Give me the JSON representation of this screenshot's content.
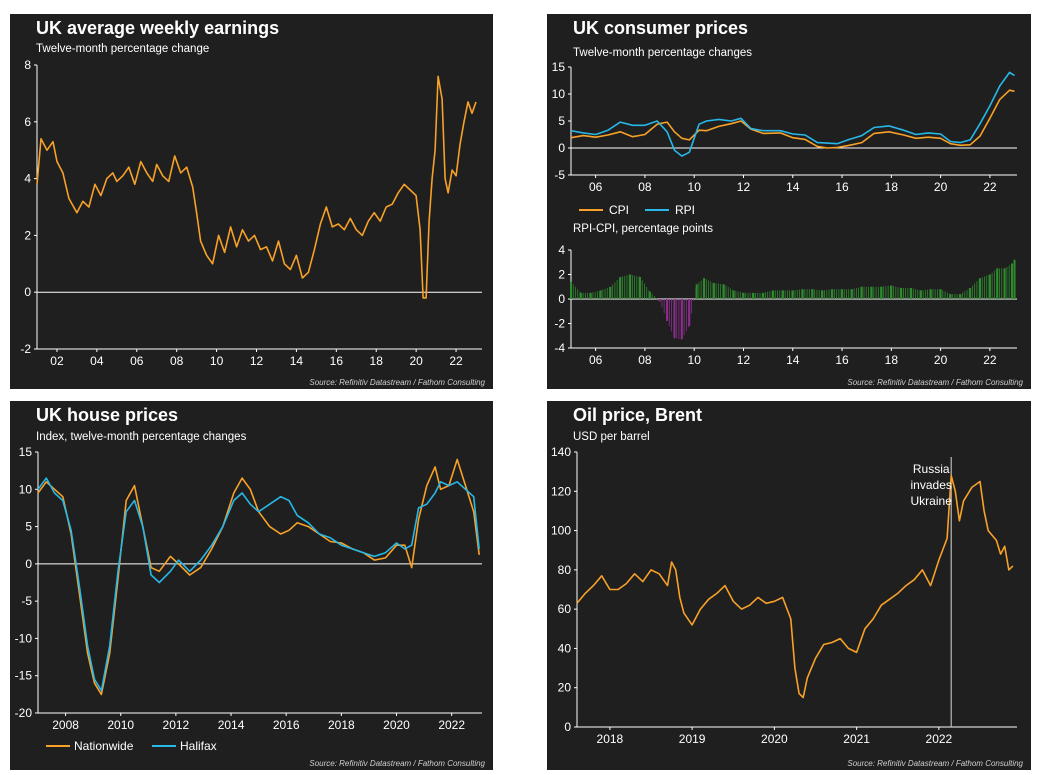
{
  "source": "Source: Refinitiv Datastream / Fathom Consulting",
  "colors": {
    "orange": "#f7a128",
    "blue": "#27b8e8",
    "green": "#2e8b2e",
    "purple": "#8a2e8a",
    "panel": "#1f1f1f",
    "axis": "#ffffff"
  },
  "chart_data": [
    {
      "type": "line",
      "title": "UK average weekly earnings",
      "subtitle": "Twelve-month percentage change",
      "ylim": [
        -2,
        8
      ],
      "yticks": [
        "-2",
        "0",
        "2",
        "4",
        "6",
        "8"
      ],
      "xlim": [
        2001,
        2023.3
      ],
      "xtick_values": [
        2002,
        2004,
        2006,
        2008,
        2010,
        2012,
        2014,
        2016,
        2018,
        2020,
        2022
      ],
      "xtick_labels": [
        "02",
        "04",
        "06",
        "08",
        "10",
        "12",
        "14",
        "16",
        "18",
        "20",
        "22"
      ],
      "series": [
        {
          "name": "Average weekly earnings",
          "color": "#f7a128",
          "x": [
            2001.0,
            2001.2,
            2001.5,
            2001.8,
            2002.0,
            2002.3,
            2002.6,
            2003.0,
            2003.3,
            2003.6,
            2003.9,
            2004.2,
            2004.5,
            2004.8,
            2005.0,
            2005.3,
            2005.6,
            2005.9,
            2006.2,
            2006.5,
            2006.8,
            2007.0,
            2007.3,
            2007.6,
            2007.9,
            2008.2,
            2008.5,
            2008.8,
            2009.0,
            2009.2,
            2009.5,
            2009.8,
            2010.1,
            2010.4,
            2010.7,
            2011.0,
            2011.3,
            2011.6,
            2011.9,
            2012.2,
            2012.5,
            2012.8,
            2013.1,
            2013.4,
            2013.7,
            2014.0,
            2014.3,
            2014.6,
            2014.9,
            2015.2,
            2015.5,
            2015.8,
            2016.1,
            2016.4,
            2016.7,
            2017.0,
            2017.3,
            2017.6,
            2017.9,
            2018.2,
            2018.5,
            2018.8,
            2019.1,
            2019.4,
            2019.7,
            2020.0,
            2020.2,
            2020.35,
            2020.5,
            2020.65,
            2020.8,
            2020.95,
            2021.1,
            2021.3,
            2021.45,
            2021.6,
            2021.8,
            2022.0,
            2022.2,
            2022.4,
            2022.6,
            2022.8,
            2023.0
          ],
          "y": [
            3.8,
            5.4,
            5.0,
            5.3,
            4.6,
            4.2,
            3.3,
            2.8,
            3.2,
            3.0,
            3.8,
            3.4,
            4.0,
            4.2,
            3.9,
            4.1,
            4.4,
            3.8,
            4.6,
            4.2,
            3.9,
            4.5,
            4.1,
            3.9,
            4.8,
            4.2,
            4.4,
            3.7,
            2.8,
            1.8,
            1.3,
            1.0,
            2.0,
            1.4,
            2.3,
            1.6,
            2.2,
            1.8,
            2.0,
            1.5,
            1.6,
            1.1,
            1.8,
            1.0,
            0.8,
            1.3,
            0.5,
            0.7,
            1.5,
            2.4,
            3.0,
            2.3,
            2.4,
            2.2,
            2.6,
            2.2,
            2.0,
            2.5,
            2.8,
            2.5,
            3.0,
            3.1,
            3.5,
            3.8,
            3.6,
            3.4,
            2.2,
            -0.2,
            -0.2,
            2.5,
            4.0,
            5.0,
            7.6,
            6.8,
            4.0,
            3.5,
            4.3,
            4.1,
            5.2,
            6.0,
            6.7,
            6.3,
            6.7
          ]
        }
      ]
    },
    {
      "type": "line",
      "title": "UK consumer prices",
      "subtitle": "Twelve-month percentage changes",
      "ylim": [
        -5,
        15
      ],
      "yticks": [
        "-5",
        "0",
        "5",
        "10",
        "15"
      ],
      "xlim": [
        2005,
        2023.1
      ],
      "xtick_values": [
        2006,
        2008,
        2010,
        2012,
        2014,
        2016,
        2018,
        2020,
        2022
      ],
      "xtick_labels": [
        "06",
        "08",
        "10",
        "12",
        "14",
        "16",
        "18",
        "20",
        "22"
      ],
      "legend": [
        "CPI",
        "RPI"
      ],
      "series": [
        {
          "name": "CPI",
          "color": "#f7a128",
          "x": [
            2005.0,
            2005.5,
            2006.0,
            2006.5,
            2007.0,
            2007.5,
            2008.0,
            2008.5,
            2008.9,
            2009.2,
            2009.5,
            2009.8,
            2010.2,
            2010.5,
            2011.0,
            2011.5,
            2011.9,
            2012.3,
            2012.8,
            2013.5,
            2014.0,
            2014.5,
            2015.0,
            2015.4,
            2015.8,
            2016.3,
            2016.8,
            2017.3,
            2017.9,
            2018.5,
            2019.0,
            2019.5,
            2020.0,
            2020.4,
            2020.8,
            2021.2,
            2021.6,
            2022.0,
            2022.4,
            2022.8,
            2023.0
          ],
          "y": [
            1.9,
            2.3,
            2.0,
            2.4,
            3.0,
            2.1,
            2.5,
            4.4,
            4.8,
            3.0,
            1.8,
            1.5,
            3.3,
            3.2,
            4.0,
            4.5,
            5.0,
            3.5,
            2.7,
            2.8,
            1.9,
            1.6,
            0.3,
            0.0,
            0.1,
            0.5,
            1.0,
            2.7,
            3.0,
            2.4,
            1.8,
            2.0,
            1.8,
            0.8,
            0.5,
            0.6,
            2.2,
            5.5,
            9.0,
            10.7,
            10.5
          ]
        },
        {
          "name": "RPI",
          "color": "#27b8e8",
          "x": [
            2005.0,
            2005.5,
            2006.0,
            2006.5,
            2007.0,
            2007.5,
            2008.0,
            2008.5,
            2008.9,
            2009.2,
            2009.5,
            2009.8,
            2010.2,
            2010.5,
            2011.0,
            2011.5,
            2011.9,
            2012.3,
            2012.8,
            2013.5,
            2014.0,
            2014.5,
            2015.0,
            2015.4,
            2015.8,
            2016.3,
            2016.8,
            2017.3,
            2017.9,
            2018.5,
            2019.0,
            2019.5,
            2020.0,
            2020.4,
            2020.8,
            2021.2,
            2021.6,
            2022.0,
            2022.4,
            2022.8,
            2023.0
          ],
          "y": [
            3.2,
            2.8,
            2.5,
            3.3,
            4.8,
            4.2,
            4.2,
            5.0,
            3.0,
            -0.4,
            -1.5,
            -0.8,
            4.4,
            5.0,
            5.3,
            5.0,
            5.5,
            3.6,
            3.2,
            3.2,
            2.6,
            2.4,
            1.0,
            0.9,
            0.8,
            1.6,
            2.3,
            3.8,
            4.1,
            3.3,
            2.5,
            2.8,
            2.6,
            1.2,
            1.0,
            1.5,
            4.5,
            7.8,
            11.5,
            14.0,
            13.4
          ]
        }
      ]
    },
    {
      "type": "bar",
      "title": "",
      "subtitle": "RPI-CPI, percentage points",
      "ylim": [
        -4,
        4
      ],
      "yticks": [
        "-4",
        "-2",
        "0",
        "2",
        "4"
      ],
      "xlim": [
        2005,
        2023.1
      ],
      "xtick_values": [
        2006,
        2008,
        2010,
        2012,
        2014,
        2016,
        2018,
        2020,
        2022
      ],
      "xtick_labels": [
        "06",
        "08",
        "10",
        "12",
        "14",
        "16",
        "18",
        "20",
        "22"
      ],
      "positive_color": "#2e8b2e",
      "negative_color": "#8a2e8a",
      "x": [
        2005.0,
        2005.4,
        2005.8,
        2006.2,
        2006.6,
        2007.0,
        2007.4,
        2007.8,
        2008.2,
        2008.6,
        2008.9,
        2009.2,
        2009.5,
        2009.8,
        2010.1,
        2010.4,
        2010.8,
        2011.2,
        2011.6,
        2012.0,
        2012.4,
        2012.8,
        2013.2,
        2013.6,
        2014.0,
        2014.4,
        2014.8,
        2015.2,
        2015.6,
        2016.0,
        2016.4,
        2016.8,
        2017.2,
        2017.6,
        2018.0,
        2018.4,
        2018.8,
        2019.2,
        2019.6,
        2020.0,
        2020.4,
        2020.8,
        2021.2,
        2021.6,
        2022.0,
        2022.3,
        2022.6,
        2022.9,
        2023.0
      ],
      "values": [
        1.4,
        0.5,
        0.5,
        0.7,
        1.0,
        1.8,
        2.0,
        1.8,
        0.6,
        -0.2,
        -1.8,
        -3.2,
        -3.3,
        -2.2,
        1.2,
        1.7,
        1.3,
        1.2,
        0.7,
        0.5,
        0.5,
        0.5,
        0.7,
        0.7,
        0.7,
        0.8,
        0.8,
        0.7,
        0.8,
        0.8,
        0.8,
        1.0,
        1.0,
        1.0,
        1.1,
        0.9,
        0.9,
        0.7,
        0.8,
        0.8,
        0.4,
        0.4,
        0.9,
        1.7,
        2.0,
        2.5,
        2.5,
        2.9,
        3.2
      ]
    },
    {
      "type": "line",
      "title": "UK house prices",
      "subtitle": "Index, twelve-month percentage changes",
      "ylim": [
        -20,
        15
      ],
      "yticks": [
        "-20",
        "-15",
        "-10",
        "-5",
        "0",
        "5",
        "10",
        "15"
      ],
      "xlim": [
        2007,
        2023.1
      ],
      "xtick_values": [
        2008,
        2010,
        2012,
        2014,
        2016,
        2018,
        2020,
        2022
      ],
      "xtick_labels": [
        "2008",
        "2010",
        "2012",
        "2014",
        "2016",
        "2018",
        "2020",
        "2022"
      ],
      "legend": [
        "Nationwide",
        "Halifax"
      ],
      "series": [
        {
          "name": "Nationwide",
          "color": "#f7a128",
          "x": [
            2007.0,
            2007.3,
            2007.6,
            2007.9,
            2008.2,
            2008.5,
            2008.8,
            2009.05,
            2009.3,
            2009.6,
            2009.9,
            2010.2,
            2010.5,
            2010.8,
            2011.1,
            2011.4,
            2011.8,
            2012.1,
            2012.5,
            2012.9,
            2013.3,
            2013.7,
            2014.1,
            2014.4,
            2014.7,
            2015.0,
            2015.4,
            2015.8,
            2016.1,
            2016.4,
            2016.8,
            2017.2,
            2017.6,
            2018.0,
            2018.4,
            2018.8,
            2019.2,
            2019.6,
            2020.0,
            2020.3,
            2020.55,
            2020.8,
            2021.1,
            2021.4,
            2021.6,
            2021.9,
            2022.2,
            2022.5,
            2022.8,
            2023.0
          ],
          "y": [
            9.5,
            11.0,
            10.0,
            9.0,
            4.0,
            -4.0,
            -12.0,
            -16.0,
            -17.5,
            -12.0,
            -2.0,
            8.5,
            10.5,
            5.0,
            -0.5,
            -1.0,
            1.0,
            0.0,
            -1.5,
            -0.5,
            2.0,
            5.0,
            9.5,
            11.5,
            10.0,
            7.0,
            5.0,
            4.0,
            4.5,
            5.5,
            5.0,
            4.0,
            3.0,
            2.8,
            2.0,
            1.5,
            0.5,
            0.8,
            2.5,
            2.5,
            -0.5,
            6.0,
            10.5,
            13.0,
            10.0,
            10.5,
            14.0,
            10.5,
            7.0,
            1.2
          ]
        },
        {
          "name": "Halifax",
          "color": "#27b8e8",
          "x": [
            2007.0,
            2007.3,
            2007.6,
            2007.9,
            2008.2,
            2008.5,
            2008.8,
            2009.05,
            2009.3,
            2009.6,
            2009.9,
            2010.2,
            2010.5,
            2010.8,
            2011.1,
            2011.4,
            2011.8,
            2012.1,
            2012.5,
            2012.9,
            2013.3,
            2013.7,
            2014.1,
            2014.4,
            2014.7,
            2015.0,
            2015.4,
            2015.8,
            2016.1,
            2016.4,
            2016.8,
            2017.2,
            2017.6,
            2018.0,
            2018.4,
            2018.8,
            2019.2,
            2019.6,
            2020.0,
            2020.3,
            2020.55,
            2020.8,
            2021.1,
            2021.4,
            2021.6,
            2021.9,
            2022.2,
            2022.5,
            2022.8,
            2023.0
          ],
          "y": [
            10.0,
            11.5,
            9.5,
            8.5,
            4.5,
            -3.0,
            -11.0,
            -15.5,
            -17.0,
            -11.0,
            -1.0,
            7.0,
            8.5,
            5.0,
            -1.5,
            -2.5,
            -1.0,
            0.5,
            -1.0,
            0.5,
            2.5,
            5.0,
            8.5,
            9.5,
            8.0,
            7.0,
            8.0,
            9.0,
            8.5,
            6.5,
            5.5,
            4.0,
            3.5,
            2.5,
            2.0,
            1.5,
            1.0,
            1.5,
            2.8,
            2.0,
            2.5,
            7.5,
            8.0,
            9.5,
            11.0,
            10.5,
            11.0,
            10.0,
            9.0,
            2.0
          ]
        }
      ]
    },
    {
      "type": "line",
      "title": "Oil price, Brent",
      "subtitle": "USD per barrel",
      "ylim": [
        0,
        140
      ],
      "yticks": [
        "0",
        "20",
        "40",
        "60",
        "80",
        "100",
        "120",
        "140"
      ],
      "xlim": [
        2017.6,
        2022.95
      ],
      "xtick_values": [
        2018.0,
        2019.0,
        2020.0,
        2021.0,
        2022.0
      ],
      "xtick_labels": [
        "2018",
        "2019",
        "2020",
        "2021",
        "2022"
      ],
      "annotation": {
        "text_lines": [
          "Russia",
          "invades",
          "Ukraine"
        ],
        "x": 2022.15
      },
      "series": [
        {
          "name": "Brent",
          "color": "#f7a128",
          "x": [
            2017.6,
            2017.7,
            2017.8,
            2017.9,
            2018.0,
            2018.1,
            2018.2,
            2018.3,
            2018.4,
            2018.5,
            2018.6,
            2018.7,
            2018.75,
            2018.8,
            2018.85,
            2018.9,
            2019.0,
            2019.1,
            2019.2,
            2019.3,
            2019.4,
            2019.5,
            2019.6,
            2019.7,
            2019.8,
            2019.9,
            2020.0,
            2020.1,
            2020.2,
            2020.25,
            2020.3,
            2020.35,
            2020.4,
            2020.5,
            2020.6,
            2020.7,
            2020.8,
            2020.9,
            2021.0,
            2021.1,
            2021.2,
            2021.3,
            2021.4,
            2021.5,
            2021.6,
            2021.7,
            2021.8,
            2021.9,
            2022.0,
            2022.1,
            2022.15,
            2022.2,
            2022.25,
            2022.3,
            2022.4,
            2022.5,
            2022.55,
            2022.6,
            2022.7,
            2022.75,
            2022.8,
            2022.85,
            2022.9
          ],
          "y": [
            63,
            68,
            72,
            77,
            70,
            70,
            73,
            78,
            74,
            80,
            78,
            72,
            84,
            80,
            66,
            58,
            52,
            60,
            65,
            68,
            72,
            64,
            60,
            62,
            66,
            63,
            64,
            66,
            55,
            30,
            17,
            15,
            25,
            35,
            42,
            43,
            45,
            40,
            38,
            50,
            55,
            62,
            65,
            68,
            72,
            75,
            80,
            72,
            85,
            96,
            128,
            120,
            105,
            115,
            122,
            125,
            110,
            100,
            95,
            88,
            92,
            80,
            82
          ]
        }
      ]
    }
  ]
}
